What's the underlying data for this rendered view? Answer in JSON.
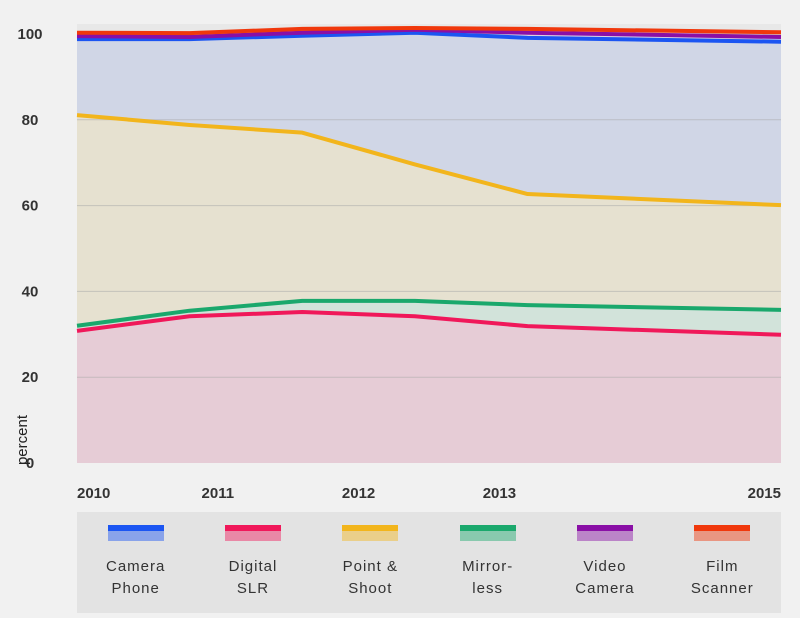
{
  "chart_data": {
    "type": "area",
    "stacked": true,
    "xlabel": "",
    "ylabel": "percent",
    "ylim": [
      0,
      100
    ],
    "yticks": [
      0,
      20,
      40,
      60,
      80,
      100
    ],
    "x_tick_labels": [
      {
        "label": "2010",
        "x": 2010
      },
      {
        "label": "2011",
        "x": 2011
      },
      {
        "label": "2012",
        "x": 2012
      },
      {
        "label": "2013",
        "x": 2013
      },
      {
        "label": "2015",
        "x": 2015
      }
    ],
    "x": [
      2010,
      2010.8,
      2011.6,
      2012.4,
      2013.2,
      2015
    ],
    "xlim": [
      2010,
      2015
    ],
    "grid": true,
    "legend_position": "bottom",
    "series": [
      {
        "name": "Digital SLR",
        "legend_label": "Digital\nSLR",
        "color": "#f0185a",
        "fill": "#e6cad5",
        "cumulative": [
          30.8,
          34.2,
          35.2,
          34.2,
          31.9,
          29.9
        ]
      },
      {
        "name": "Mirror-less",
        "legend_label": "Mirror-\nless",
        "color": "#1aa86c",
        "fill": "#d1e3d9",
        "cumulative": [
          32.0,
          35.5,
          37.8,
          37.8,
          36.8,
          35.7
        ]
      },
      {
        "name": "Point & Shoot",
        "legend_label": "Point &\nShoot",
        "color": "#f2b51c",
        "fill": "#e6e0cf",
        "cumulative": [
          81.1,
          78.8,
          77.0,
          69.6,
          62.7,
          60.1
        ]
      },
      {
        "name": "Camera Phone",
        "legend_label": "Camera\nPhone",
        "color": "#1b55f2",
        "fill": "#cfd5e6",
        "cumulative": [
          98.8,
          98.8,
          99.6,
          100.3,
          99.1,
          98.2
        ]
      },
      {
        "name": "Video Camera",
        "legend_label": "Video\nCamera",
        "color": "#8a0fa6",
        "fill": "#d9cde4",
        "cumulative": [
          99.5,
          99.3,
          100.3,
          101.0,
          100.3,
          99.3
        ]
      },
      {
        "name": "Film Scanner",
        "legend_label": "Film\nScanner",
        "color": "#f0380c",
        "fill": "#ead3cd",
        "cumulative": [
          100.3,
          100.2,
          101.2,
          101.4,
          101.2,
          100.4
        ]
      }
    ],
    "legend_order": [
      "Camera Phone",
      "Digital SLR",
      "Point & Shoot",
      "Mirror-less",
      "Video Camera",
      "Film Scanner"
    ]
  }
}
